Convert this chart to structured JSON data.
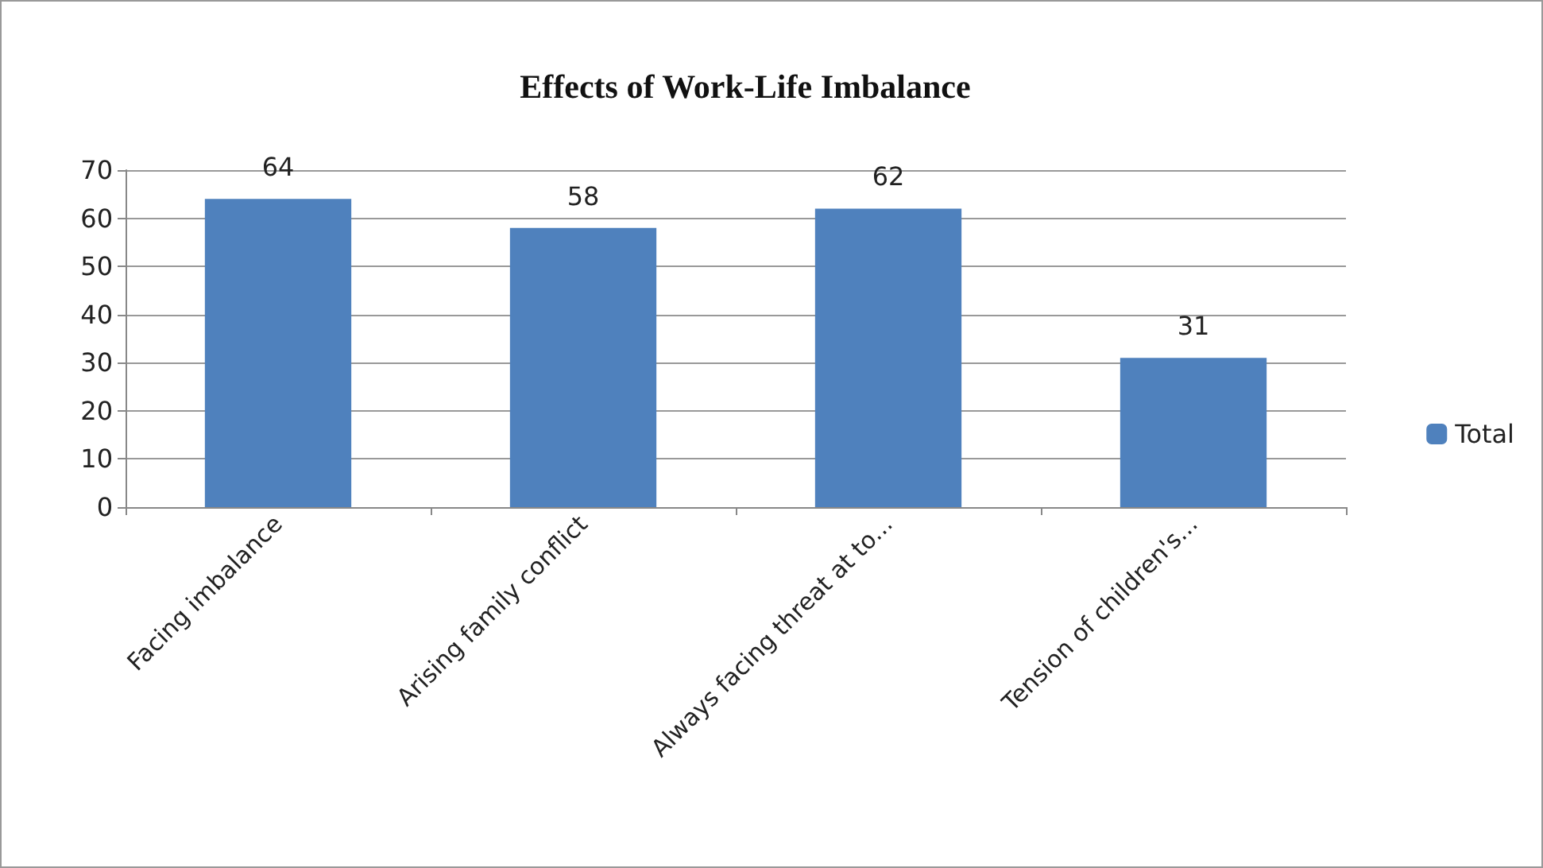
{
  "chart_data": {
    "type": "bar",
    "title": "Effects of Work-Life Imbalance",
    "categories": [
      "Facing imbalance",
      "Arising family conflict",
      "Always facing threat at to...",
      "Tension of children's..."
    ],
    "series": [
      {
        "name": "Total",
        "color": "#4f81bd",
        "values": [
          64,
          58,
          62,
          31
        ]
      }
    ],
    "ylim": [
      0,
      70
    ],
    "yticks": [
      0,
      10,
      20,
      30,
      40,
      50,
      60,
      70
    ],
    "grid": "y",
    "legend": "right",
    "data_labels": true
  }
}
